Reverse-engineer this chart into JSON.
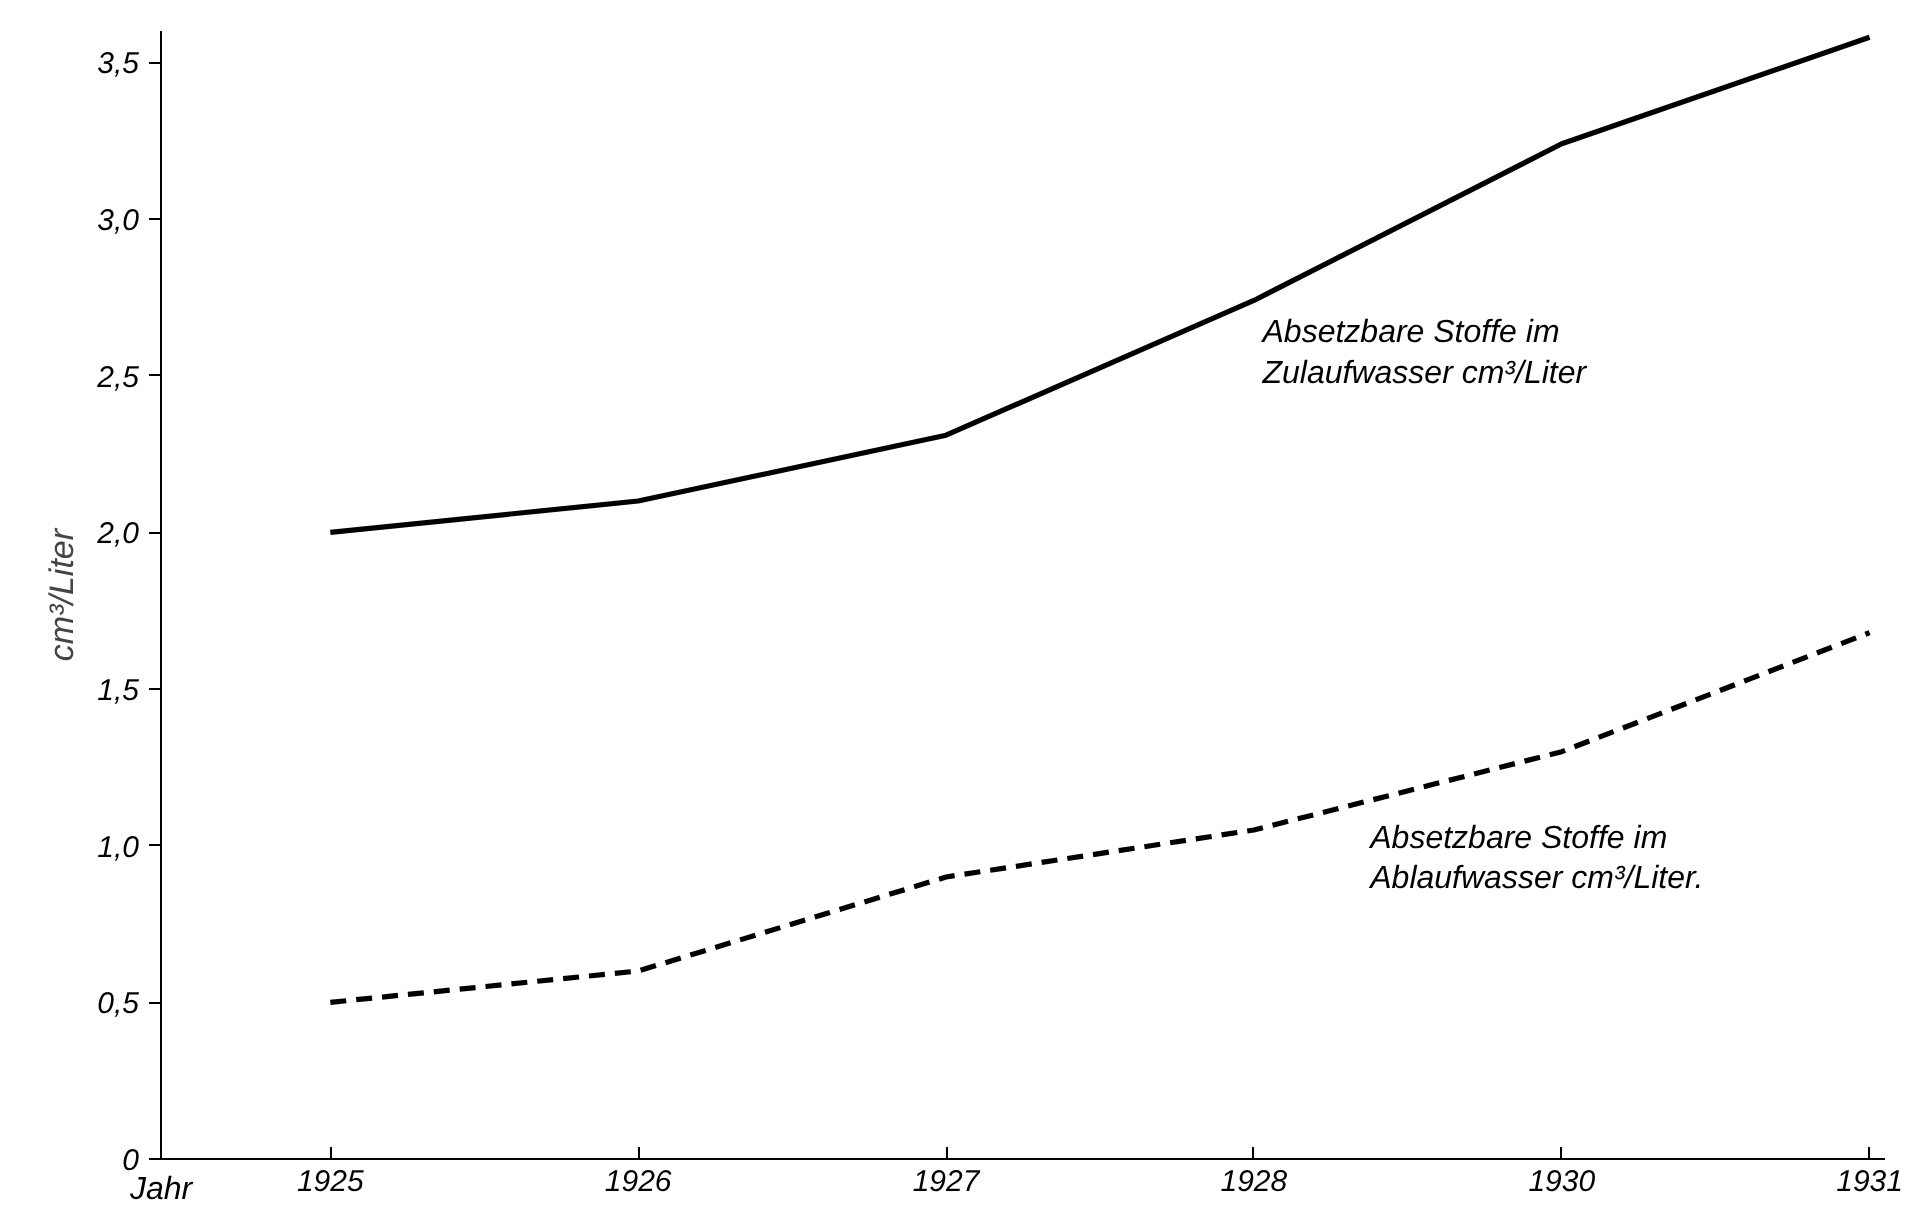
{
  "chart_data": {
    "type": "line",
    "xlabel": "Jahr",
    "ylabel": "cm³/Liter",
    "categories": [
      "1925",
      "1926",
      "1927",
      "1928",
      "1930",
      "1931"
    ],
    "series": [
      {
        "name": "Absetzbare Stoffe im\nZulaufwasser cm³/Liter",
        "color": "#000000",
        "line_style": "solid",
        "values": [
          2.0,
          2.1,
          2.31,
          2.74,
          3.24,
          3.58
        ]
      },
      {
        "name": "Absetzbare Stoffe im\nAblaufwasser cm³/Liter.",
        "color": "#000000",
        "line_style": "dashed",
        "values": [
          0.5,
          0.6,
          0.9,
          1.05,
          1.3,
          1.68
        ]
      }
    ],
    "ylim": [
      0,
      3.6
    ],
    "yticks": [
      {
        "value": 0,
        "label": "0"
      },
      {
        "value": 0.5,
        "label": "0,5"
      },
      {
        "value": 1.0,
        "label": "1,0"
      },
      {
        "value": 1.5,
        "label": "1,5"
      },
      {
        "value": 2.0,
        "label": "2,0"
      },
      {
        "value": 2.5,
        "label": "2,5"
      },
      {
        "value": 3.0,
        "label": "3,0"
      },
      {
        "value": 3.5,
        "label": "3,5"
      }
    ],
    "grid": false,
    "legend": false,
    "marker": "none"
  }
}
